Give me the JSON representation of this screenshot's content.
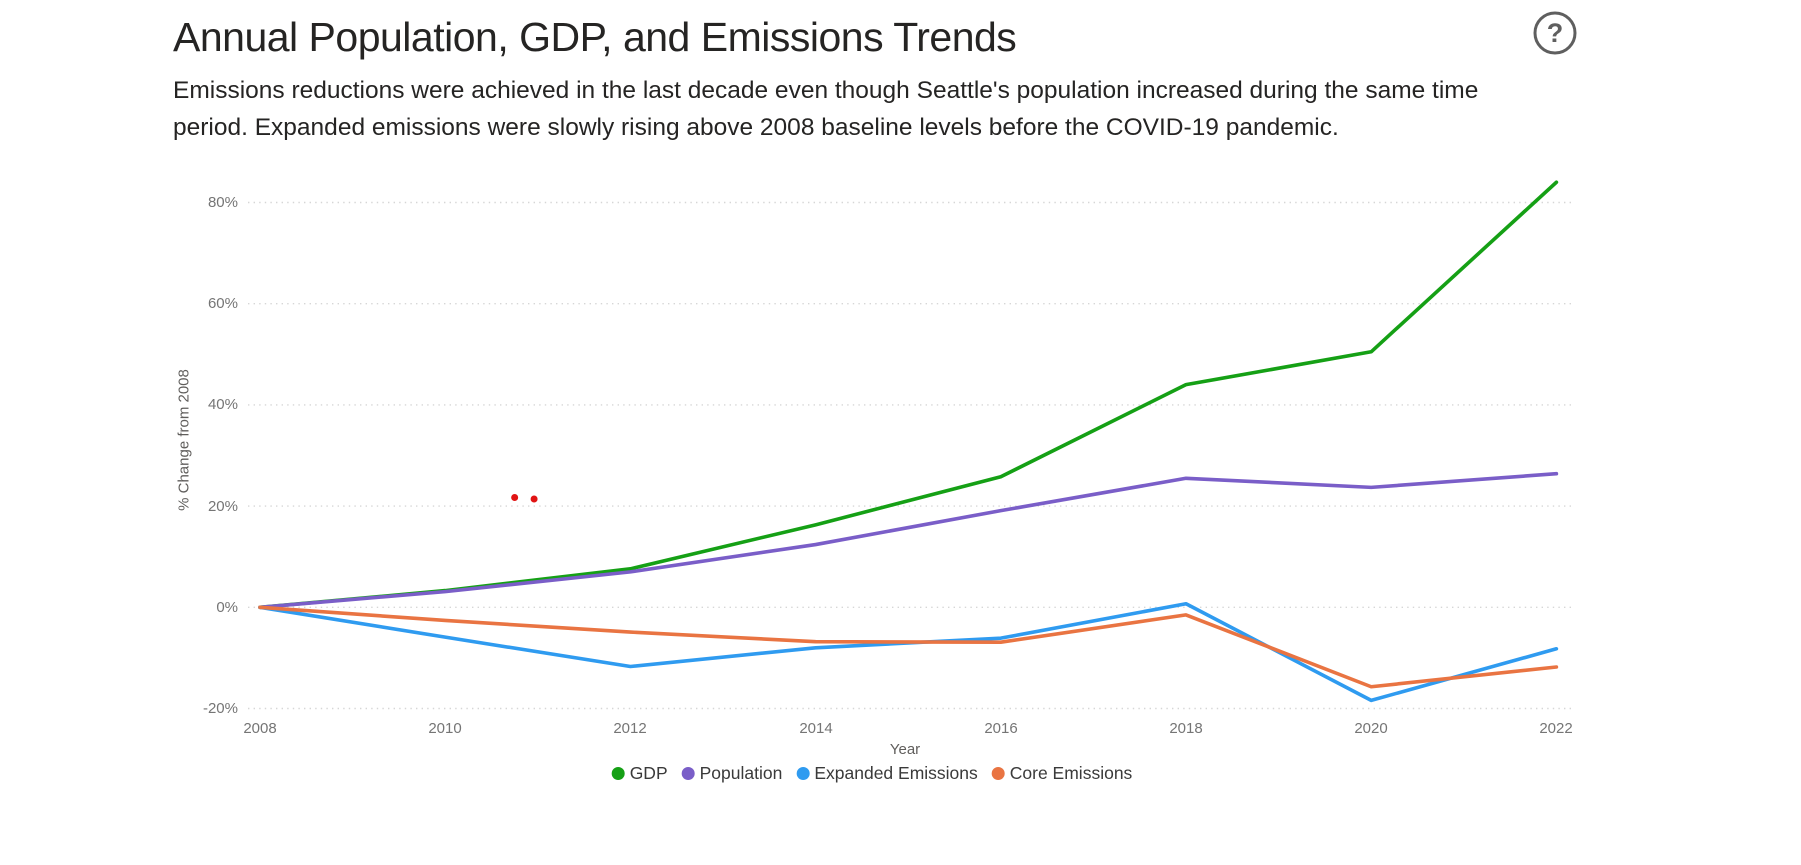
{
  "header": {
    "help_icon_color": "#5F5F5F",
    "help_glyph": "?"
  },
  "chart_data": {
    "type": "line",
    "title": "Annual Population, GDP, and Emissions Trends",
    "subtitle_lines": [
      "Emissions reductions were achieved in the last decade even though Seattle's population increased during the same time",
      "period. Expanded emissions were slowly rising above 2008 baseline levels before the COVID-19 pandemic."
    ],
    "xlabel": "Year",
    "ylabel": "% Change from 2008",
    "xlim": [
      2008,
      2022
    ],
    "ylim": [
      -25,
      88
    ],
    "grid": "horizontal-dotted",
    "legend_position": "bottom-center",
    "x": [
      2008,
      2010,
      2012,
      2014,
      2016,
      2018,
      2020,
      2022
    ],
    "x_tick_labels": [
      "2008",
      "2010",
      "2012",
      "2014",
      "2016",
      "2018",
      "2020",
      "2022"
    ],
    "y_ticks": [
      80,
      60,
      40,
      20,
      0,
      -20
    ],
    "y_tick_labels": [
      "80%",
      "60%",
      "40%",
      "20%",
      "0%",
      "-20%"
    ],
    "series": [
      {
        "name": "GDP",
        "color": "#15A015",
        "values": [
          0,
          3.3,
          7.6,
          16.3,
          25.8,
          44.0,
          50.5,
          84.0
        ]
      },
      {
        "name": "Population",
        "color": "#7A5EC8",
        "values": [
          0,
          3.1,
          7.0,
          12.4,
          19.1,
          25.5,
          23.7,
          26.4
        ]
      },
      {
        "name": "Expanded Emissions",
        "color": "#2F9BF0",
        "values": [
          0,
          -5.9,
          -11.7,
          -8.0,
          -6.1,
          0.7,
          -18.4,
          -8.2
        ]
      },
      {
        "name": "Core Emissions",
        "color": "#E97442",
        "values": [
          0,
          -2.6,
          -4.9,
          -6.8,
          -6.9,
          -1.5,
          -15.7,
          -11.8
        ]
      }
    ],
    "annotations": {
      "color": "#E11414",
      "points": [
        {
          "x": 2010.75,
          "y": 21.7
        },
        {
          "x": 2010.96,
          "y": 21.4
        }
      ]
    }
  }
}
